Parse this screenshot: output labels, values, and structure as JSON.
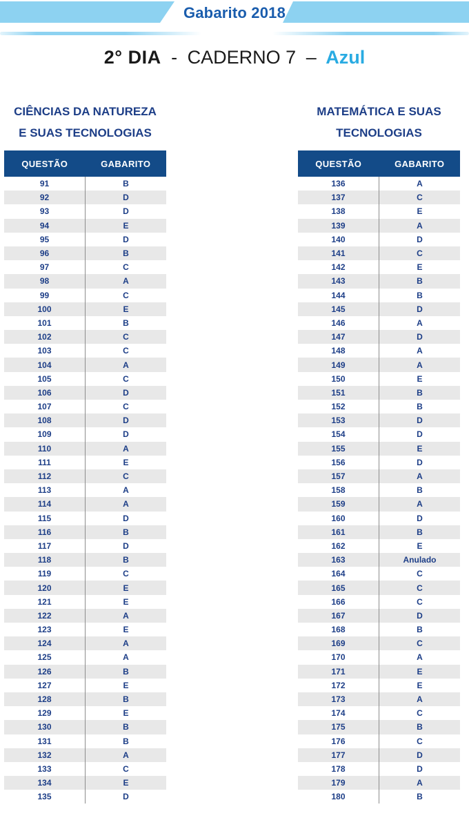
{
  "banner": {
    "title": "Gabarito 2018"
  },
  "title": {
    "day": "2° DIA",
    "sep1": "-",
    "caderno": "CADERNO 7",
    "sep2": "–",
    "color_label": "Azul"
  },
  "colors": {
    "banner_blue": "#8dd2f1",
    "banner_title_blue": "#1a5dad",
    "accent_blue": "#29abe2",
    "header_bg": "#134b88",
    "text_navy": "#1d3e87",
    "row_alt": "#e8e8e8"
  },
  "tables": [
    {
      "title_lines": [
        "CIÊNCIAS DA NATUREZA",
        "E SUAS TECNOLOGIAS"
      ],
      "col_headers": [
        "QUESTÃO",
        "GABARITO"
      ],
      "rows": [
        [
          "91",
          "B"
        ],
        [
          "92",
          "D"
        ],
        [
          "93",
          "D"
        ],
        [
          "94",
          "E"
        ],
        [
          "95",
          "D"
        ],
        [
          "96",
          "B"
        ],
        [
          "97",
          "C"
        ],
        [
          "98",
          "A"
        ],
        [
          "99",
          "C"
        ],
        [
          "100",
          "E"
        ],
        [
          "101",
          "B"
        ],
        [
          "102",
          "C"
        ],
        [
          "103",
          "C"
        ],
        [
          "104",
          "A"
        ],
        [
          "105",
          "C"
        ],
        [
          "106",
          "D"
        ],
        [
          "107",
          "C"
        ],
        [
          "108",
          "D"
        ],
        [
          "109",
          "D"
        ],
        [
          "110",
          "A"
        ],
        [
          "111",
          "E"
        ],
        [
          "112",
          "C"
        ],
        [
          "113",
          "A"
        ],
        [
          "114",
          "A"
        ],
        [
          "115",
          "D"
        ],
        [
          "116",
          "B"
        ],
        [
          "117",
          "D"
        ],
        [
          "118",
          "B"
        ],
        [
          "119",
          "C"
        ],
        [
          "120",
          "E"
        ],
        [
          "121",
          "E"
        ],
        [
          "122",
          "A"
        ],
        [
          "123",
          "E"
        ],
        [
          "124",
          "A"
        ],
        [
          "125",
          "A"
        ],
        [
          "126",
          "B"
        ],
        [
          "127",
          "E"
        ],
        [
          "128",
          "B"
        ],
        [
          "129",
          "E"
        ],
        [
          "130",
          "B"
        ],
        [
          "131",
          "B"
        ],
        [
          "132",
          "A"
        ],
        [
          "133",
          "C"
        ],
        [
          "134",
          "E"
        ],
        [
          "135",
          "D"
        ]
      ]
    },
    {
      "title_lines": [
        "MATEMÁTICA E SUAS",
        "TECNOLOGIAS"
      ],
      "col_headers": [
        "QUESTÃO",
        "GABARITO"
      ],
      "rows": [
        [
          "136",
          "A"
        ],
        [
          "137",
          "C"
        ],
        [
          "138",
          "E"
        ],
        [
          "139",
          "A"
        ],
        [
          "140",
          "D"
        ],
        [
          "141",
          "C"
        ],
        [
          "142",
          "E"
        ],
        [
          "143",
          "B"
        ],
        [
          "144",
          "B"
        ],
        [
          "145",
          "D"
        ],
        [
          "146",
          "A"
        ],
        [
          "147",
          "D"
        ],
        [
          "148",
          "A"
        ],
        [
          "149",
          "A"
        ],
        [
          "150",
          "E"
        ],
        [
          "151",
          "B"
        ],
        [
          "152",
          "B"
        ],
        [
          "153",
          "D"
        ],
        [
          "154",
          "D"
        ],
        [
          "155",
          "E"
        ],
        [
          "156",
          "D"
        ],
        [
          "157",
          "A"
        ],
        [
          "158",
          "B"
        ],
        [
          "159",
          "A"
        ],
        [
          "160",
          "D"
        ],
        [
          "161",
          "B"
        ],
        [
          "162",
          "E"
        ],
        [
          "163",
          "Anulado"
        ],
        [
          "164",
          "C"
        ],
        [
          "165",
          "C"
        ],
        [
          "166",
          "C"
        ],
        [
          "167",
          "D"
        ],
        [
          "168",
          "B"
        ],
        [
          "169",
          "C"
        ],
        [
          "170",
          "A"
        ],
        [
          "171",
          "E"
        ],
        [
          "172",
          "E"
        ],
        [
          "173",
          "A"
        ],
        [
          "174",
          "C"
        ],
        [
          "175",
          "B"
        ],
        [
          "176",
          "C"
        ],
        [
          "177",
          "D"
        ],
        [
          "178",
          "D"
        ],
        [
          "179",
          "A"
        ],
        [
          "180",
          "B"
        ]
      ]
    }
  ]
}
